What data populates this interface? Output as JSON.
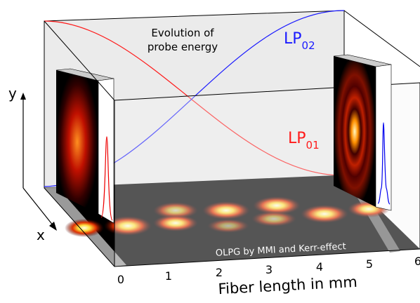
{
  "annotation": {
    "line1": "Evolution of",
    "line2": "probe energy"
  },
  "curves": [
    {
      "label": "LP",
      "subscript": "02",
      "color": "#1a1aff"
    },
    {
      "label": "LP",
      "subscript": "01",
      "color": "#ff1a1a"
    }
  ],
  "floor_label": "OLPG by MMI and Kerr-effect",
  "axis": {
    "ticks": [
      0,
      1,
      2,
      3,
      4,
      5,
      6
    ],
    "title": "Fiber length in mm",
    "y_label": "y",
    "x_label": "x"
  }
}
